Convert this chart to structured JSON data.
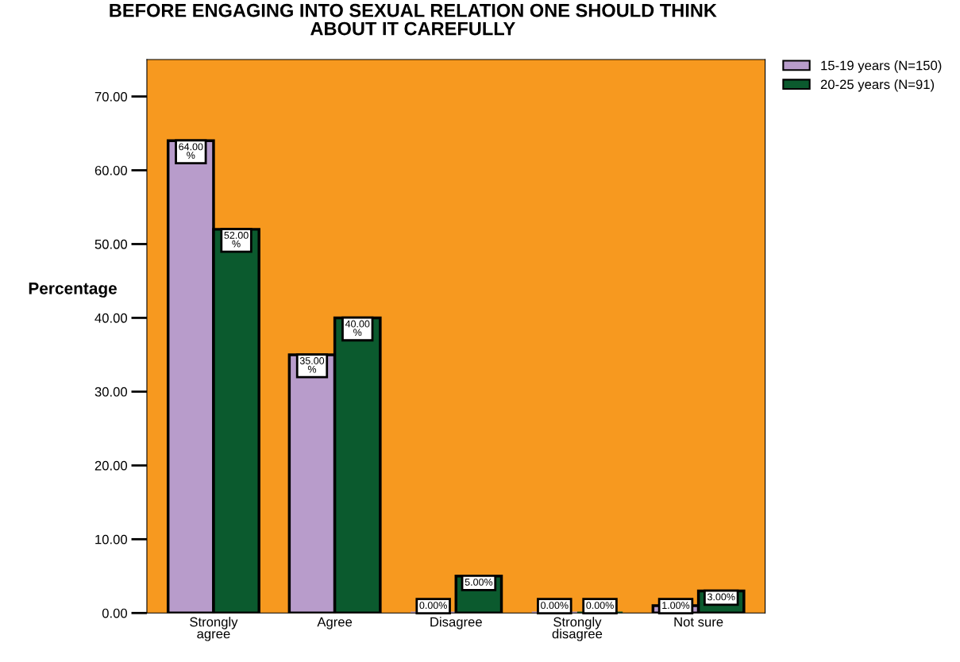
{
  "chart_data": {
    "type": "bar",
    "title": "BEFORE ENGAGING INTO SEXUAL RELATION ONE SHOULD THINK\nABOUT IT CAREFULLY",
    "ylabel": "Percentage",
    "categories": [
      "Strongly\nagree",
      "Agree",
      "Disagree",
      "Strongly\ndisagree",
      "Not sure"
    ],
    "series": [
      {
        "name": "15-19 years (N=150)",
        "color": "#b89ccb",
        "values": [
          64,
          35,
          0,
          0,
          1
        ],
        "value_labels": [
          "64.00\n%",
          "35.00\n%",
          "0.00%",
          "0.00%",
          "1.00%"
        ]
      },
      {
        "name": "20-25 years (N=91)",
        "color": "#0b5a2e",
        "values": [
          52,
          40,
          5,
          0,
          3
        ],
        "value_labels": [
          "52.00\n%",
          "40.00\n%",
          "5.00%",
          "0.00%",
          "3.00%"
        ]
      }
    ],
    "ylim": [
      0,
      75
    ],
    "yticks": [
      {
        "value": 0,
        "label": "0.00"
      },
      {
        "value": 10,
        "label": "10.00"
      },
      {
        "value": 20,
        "label": "20.00"
      },
      {
        "value": 30,
        "label": "30.00"
      },
      {
        "value": 40,
        "label": "40.00"
      },
      {
        "value": 50,
        "label": "50.00"
      },
      {
        "value": 60,
        "label": "60.00"
      },
      {
        "value": 70,
        "label": "70.00"
      }
    ],
    "legend": "top right",
    "grid": false
  }
}
